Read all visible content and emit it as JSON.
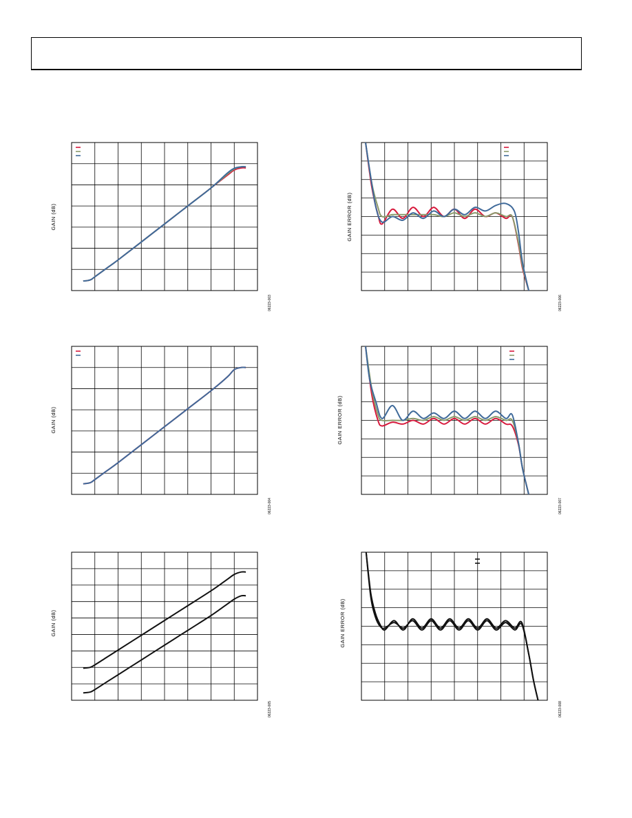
{
  "header": {
    "title": ""
  },
  "colors": {
    "red": "#d7193c",
    "green": "#8a9a6b",
    "blue": "#3f6a9a",
    "black": "#111111"
  },
  "chart_data": [
    {
      "id": "c1",
      "type": "line",
      "ylabel": "GAIN (dB)",
      "figure_id": "06223-003",
      "xlim": [
        0,
        8
      ],
      "ylim": [
        0,
        7
      ],
      "grid": true,
      "legend": "top-left",
      "series": [
        {
          "color": "red",
          "x": [
            0.5,
            0.8,
            1,
            1.5,
            2,
            3,
            4,
            5,
            6,
            6.7,
            7,
            7.3,
            7.5
          ],
          "y": [
            0.45,
            0.5,
            0.65,
            1.05,
            1.45,
            2.3,
            3.15,
            4.0,
            4.85,
            5.45,
            5.7,
            5.8,
            5.8
          ]
        },
        {
          "color": "green",
          "x": [
            0.5,
            0.8,
            1,
            1.5,
            2,
            3,
            4,
            5,
            6,
            6.7,
            7,
            7.3,
            7.5
          ],
          "y": [
            0.45,
            0.5,
            0.65,
            1.05,
            1.45,
            2.3,
            3.15,
            4.0,
            4.85,
            5.5,
            5.75,
            5.85,
            5.85
          ]
        },
        {
          "color": "blue",
          "x": [
            0.5,
            0.8,
            1,
            1.5,
            2,
            3,
            4,
            5,
            6,
            6.7,
            7,
            7.3,
            7.5
          ],
          "y": [
            0.45,
            0.5,
            0.65,
            1.05,
            1.45,
            2.3,
            3.15,
            4.0,
            4.85,
            5.55,
            5.78,
            5.85,
            5.85
          ]
        }
      ]
    },
    {
      "id": "c2",
      "type": "line",
      "ylabel": "GAIN ERROR (dB)",
      "figure_id": "06223-006",
      "xlim": [
        0,
        9
      ],
      "ylim": [
        -4,
        4
      ],
      "grid": true,
      "legend": "top-right",
      "series": [
        {
          "color": "red",
          "x": [
            0.2,
            0.5,
            0.8,
            1,
            1.5,
            2,
            2.5,
            3,
            3.5,
            4,
            4.5,
            5,
            5.5,
            6,
            6.5,
            7,
            7.3,
            7.6,
            7.8,
            8.1
          ],
          "y": [
            4,
            1.6,
            0.1,
            -0.4,
            0.4,
            -0.1,
            0.5,
            0,
            0.5,
            0,
            0.4,
            -0.1,
            0.4,
            0,
            0.2,
            -0.1,
            0,
            -1.5,
            -2.8,
            -4
          ]
        },
        {
          "color": "green",
          "x": [
            0.2,
            0.5,
            0.8,
            1,
            1.5,
            2,
            2.5,
            3,
            3.5,
            4,
            4.5,
            5,
            5.5,
            6,
            6.5,
            7,
            7.3,
            7.6,
            7.8,
            8.1
          ],
          "y": [
            4,
            1.8,
            0.5,
            0,
            0.1,
            0.1,
            0.1,
            0.1,
            0.1,
            0,
            0.2,
            0,
            0.2,
            0,
            0.2,
            0,
            0,
            -1.4,
            -2.7,
            -4
          ]
        },
        {
          "color": "blue",
          "x": [
            0.2,
            0.4,
            0.7,
            1,
            1.5,
            2,
            2.5,
            3,
            3.5,
            4,
            4.5,
            5,
            5.5,
            6,
            6.5,
            7,
            7.4,
            7.6,
            7.8,
            8.1
          ],
          "y": [
            4,
            2.5,
            0.5,
            -0.3,
            0,
            -0.2,
            0.2,
            -0.1,
            0.3,
            0,
            0.4,
            0.1,
            0.5,
            0.3,
            0.6,
            0.7,
            0.3,
            -0.8,
            -2.5,
            -4
          ]
        }
      ]
    },
    {
      "id": "c3",
      "type": "line",
      "ylabel": "GAIN (dB)",
      "figure_id": "06223-004",
      "xlim": [
        0,
        8
      ],
      "ylim": [
        0,
        7
      ],
      "grid": true,
      "legend": "top-left",
      "series": [
        {
          "color": "red",
          "x": [
            0.5,
            0.8,
            1,
            1.5,
            2,
            3,
            4,
            5,
            6,
            6.7,
            7,
            7.3,
            7.5
          ],
          "y": [
            0.5,
            0.55,
            0.7,
            1.1,
            1.5,
            2.35,
            3.2,
            4.05,
            4.9,
            5.55,
            5.9,
            6.0,
            6.0
          ]
        },
        {
          "color": "blue",
          "x": [
            0.5,
            0.8,
            1,
            1.5,
            2,
            3,
            4,
            5,
            6,
            6.7,
            7,
            7.3,
            7.5
          ],
          "y": [
            0.5,
            0.55,
            0.7,
            1.1,
            1.5,
            2.35,
            3.2,
            4.05,
            4.9,
            5.55,
            5.9,
            6.0,
            6.0
          ]
        }
      ]
    },
    {
      "id": "c4",
      "type": "line",
      "ylabel": "GAIN ERROR (dB)",
      "figure_id": "06223-007",
      "xlim": [
        0,
        9
      ],
      "ylim": [
        -4,
        4
      ],
      "grid": true,
      "legend": "top-right",
      "series": [
        {
          "color": "red",
          "x": [
            0.2,
            0.5,
            0.8,
            1,
            1.5,
            2,
            2.5,
            3,
            3.5,
            4,
            4.5,
            5,
            5.5,
            6,
            6.5,
            7,
            7.3,
            7.6,
            7.8,
            8.1
          ],
          "y": [
            4,
            1.4,
            0,
            -0.3,
            -0.1,
            -0.2,
            0,
            -0.2,
            0.1,
            -0.2,
            0.1,
            -0.2,
            0.1,
            -0.2,
            0.1,
            -0.2,
            -0.3,
            -1.3,
            -2.6,
            -4
          ]
        },
        {
          "color": "green",
          "x": [
            0.2,
            0.5,
            0.8,
            1,
            1.5,
            2,
            2.5,
            3,
            3.5,
            4,
            4.5,
            5,
            5.5,
            6,
            6.5,
            7,
            7.3,
            7.6,
            7.8,
            8.1
          ],
          "y": [
            4,
            1.7,
            0.3,
            0,
            0,
            0,
            0.1,
            0,
            0.2,
            0,
            0.2,
            0,
            0.2,
            0,
            0.2,
            0,
            0,
            -1.2,
            -2.6,
            -4
          ]
        },
        {
          "color": "blue",
          "x": [
            0.2,
            0.4,
            0.7,
            1,
            1.5,
            2,
            2.5,
            3,
            3.5,
            4,
            4.5,
            5,
            5.5,
            6,
            6.5,
            7,
            7.3,
            7.6,
            7.8,
            8.1
          ],
          "y": [
            4,
            2.2,
            1.0,
            0.1,
            0.8,
            0,
            0.5,
            0.1,
            0.4,
            0.1,
            0.5,
            0.1,
            0.5,
            0.1,
            0.5,
            0.1,
            0.3,
            -1.2,
            -2.6,
            -4
          ]
        }
      ]
    },
    {
      "id": "c5",
      "type": "line",
      "ylabel": "GAIN (dB)",
      "figure_id": "06223-005",
      "xlim": [
        0,
        8
      ],
      "ylim": [
        0,
        9
      ],
      "grid": true,
      "legend": "none",
      "series": [
        {
          "color": "black",
          "x": [
            0.5,
            0.8,
            1,
            1.5,
            2,
            3,
            4,
            5,
            6,
            6.7,
            7,
            7.3,
            7.5
          ],
          "y": [
            1.95,
            2.0,
            2.15,
            2.6,
            3.05,
            3.95,
            4.85,
            5.75,
            6.65,
            7.35,
            7.65,
            7.8,
            7.8
          ]
        },
        {
          "color": "black",
          "x": [
            0.5,
            0.8,
            1,
            1.5,
            2,
            3,
            4,
            5,
            6,
            6.7,
            7,
            7.3,
            7.5
          ],
          "y": [
            0.45,
            0.5,
            0.65,
            1.1,
            1.55,
            2.45,
            3.35,
            4.25,
            5.15,
            5.85,
            6.15,
            6.35,
            6.35
          ]
        }
      ]
    },
    {
      "id": "c6",
      "type": "line",
      "ylabel": "GAIN ERROR (dB)",
      "figure_id": "06223-008",
      "xlim": [
        0,
        8
      ],
      "ylim": [
        -4,
        4
      ],
      "grid": true,
      "legend": "top-right",
      "series": [
        {
          "color": "black",
          "x": [
            0.2,
            0.4,
            0.6,
            0.8,
            1,
            1.4,
            1.8,
            2.2,
            2.6,
            3,
            3.4,
            3.8,
            4.2,
            4.6,
            5,
            5.4,
            5.8,
            6.2,
            6.6,
            6.9,
            7.2,
            7.4,
            7.6
          ],
          "y": [
            4,
            1.8,
            0.7,
            0.1,
            -0.2,
            0.3,
            -0.2,
            0.4,
            -0.1,
            0.4,
            -0.1,
            0.4,
            -0.1,
            0.4,
            -0.1,
            0.4,
            -0.1,
            0.3,
            -0.1,
            0.2,
            -1.5,
            -2.9,
            -4
          ]
        },
        {
          "color": "black",
          "x": [
            0.2,
            0.4,
            0.6,
            0.8,
            1,
            1.4,
            1.8,
            2.2,
            2.6,
            3,
            3.4,
            3.8,
            4.2,
            4.6,
            5,
            5.4,
            5.8,
            6.2,
            6.6,
            6.9,
            7.2,
            7.4,
            7.6
          ],
          "y": [
            4,
            1.6,
            0.5,
            0,
            -0.1,
            0.2,
            -0.1,
            0.3,
            -0.2,
            0.3,
            -0.2,
            0.3,
            -0.2,
            0.3,
            -0.2,
            0.3,
            -0.2,
            0.2,
            -0.2,
            0.1,
            -1.5,
            -2.9,
            -4
          ]
        }
      ]
    }
  ]
}
